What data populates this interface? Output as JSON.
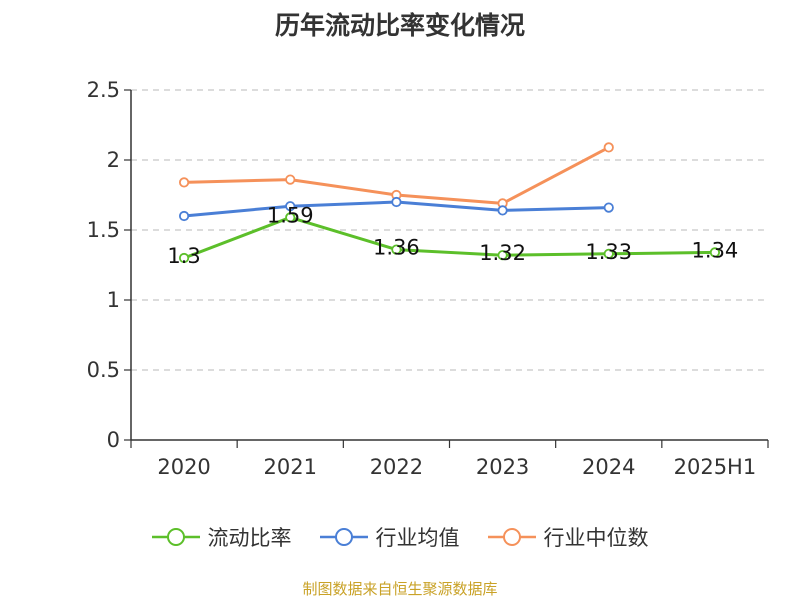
{
  "chart_data": {
    "type": "line",
    "title": "历年流动比率变化情况",
    "categories": [
      "2020",
      "2021",
      "2022",
      "2023",
      "2024",
      "2025H1"
    ],
    "ylim": [
      0,
      2.5
    ],
    "yticks": [
      "0",
      "0.5",
      "1",
      "1.5",
      "2",
      "2.5"
    ],
    "grid": true,
    "legend_position": "bottom",
    "series": [
      {
        "name": "流动比率",
        "color": "#5cbf2a",
        "values": [
          1.3,
          1.59,
          1.36,
          1.32,
          1.33,
          1.34
        ],
        "labels": [
          "1.3",
          "1.59",
          "1.36",
          "1.32",
          "1.33",
          "1.34"
        ]
      },
      {
        "name": "行业均值",
        "color": "#4a7fd6",
        "values": [
          1.6,
          1.67,
          1.7,
          1.64,
          1.66,
          null
        ]
      },
      {
        "name": "行业中位数",
        "color": "#f5915a",
        "values": [
          1.84,
          1.86,
          1.75,
          1.69,
          2.09,
          null
        ]
      }
    ]
  },
  "source_text": "制图数据来自恒生聚源数据库"
}
